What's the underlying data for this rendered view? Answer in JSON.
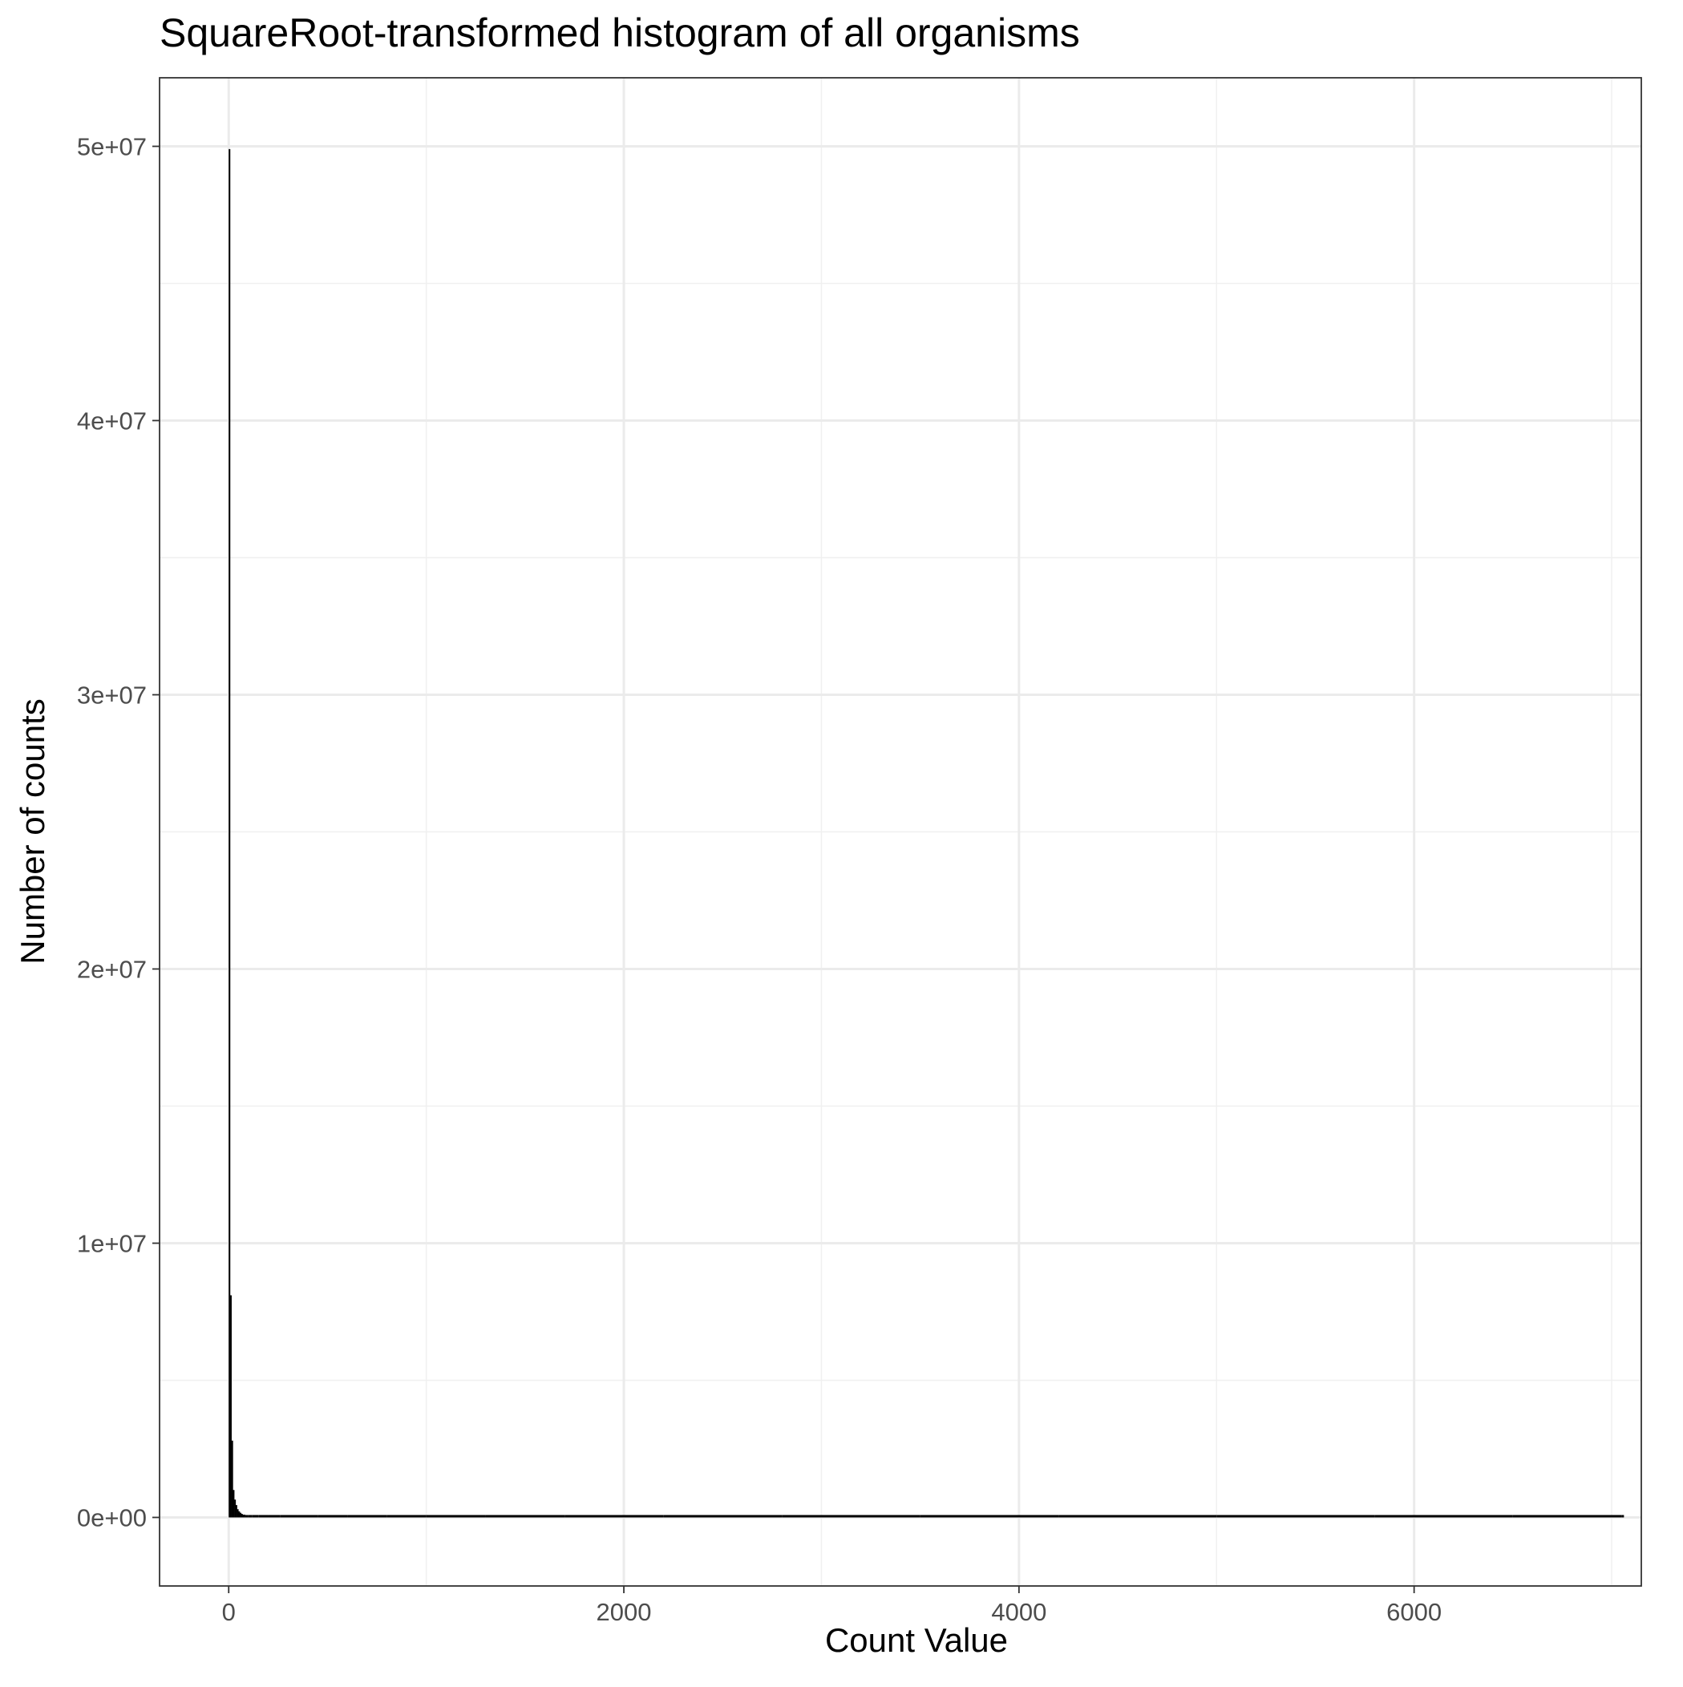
{
  "chart_data": {
    "type": "bar",
    "title": "SquareRoot-transformed histogram of all organisms",
    "xlabel": "Count Value",
    "ylabel": "Number of counts",
    "xlim": [
      -350,
      7150
    ],
    "ylim": [
      -2500000,
      52500000
    ],
    "x_ticks": [
      {
        "value": 0,
        "label": "0"
      },
      {
        "value": 2000,
        "label": "2000"
      },
      {
        "value": 4000,
        "label": "4000"
      },
      {
        "value": 6000,
        "label": "6000"
      }
    ],
    "y_ticks": [
      {
        "value": 0,
        "label": "0e+00"
      },
      {
        "value": 10000000,
        "label": "1e+07"
      },
      {
        "value": 20000000,
        "label": "2e+07"
      },
      {
        "value": 30000000,
        "label": "3e+07"
      },
      {
        "value": 40000000,
        "label": "4e+07"
      },
      {
        "value": 50000000,
        "label": "5e+07"
      }
    ],
    "grid": true,
    "bar_color": "#000000",
    "bins": [
      {
        "x": 0,
        "count": 49900000
      },
      {
        "x": 7,
        "count": 8100000
      },
      {
        "x": 14,
        "count": 2800000
      },
      {
        "x": 21,
        "count": 1000000
      },
      {
        "x": 28,
        "count": 650000
      },
      {
        "x": 35,
        "count": 450000
      },
      {
        "x": 42,
        "count": 300000
      },
      {
        "x": 49,
        "count": 220000
      },
      {
        "x": 56,
        "count": 170000
      },
      {
        "x": 63,
        "count": 130000
      },
      {
        "x": 70,
        "count": 100000
      },
      {
        "x": 84,
        "count": 80000
      },
      {
        "x": 98,
        "count": 65000
      },
      {
        "x": 120,
        "count": 50000
      },
      {
        "x": 150,
        "count": 40000
      },
      {
        "x": 200,
        "count": 30000
      },
      {
        "x": 260,
        "count": 22000
      },
      {
        "x": 350,
        "count": 16000
      },
      {
        "x": 450,
        "count": 12000
      },
      {
        "x": 600,
        "count": 9000
      },
      {
        "x": 800,
        "count": 7000
      },
      {
        "x": 1000,
        "count": 5000
      },
      {
        "x": 1300,
        "count": 3500
      },
      {
        "x": 1700,
        "count": 2500
      },
      {
        "x": 2200,
        "count": 1800
      },
      {
        "x": 2800,
        "count": 1200
      },
      {
        "x": 3500,
        "count": 900
      },
      {
        "x": 4200,
        "count": 600
      },
      {
        "x": 5000,
        "count": 400
      },
      {
        "x": 5800,
        "count": 250
      },
      {
        "x": 6500,
        "count": 150
      },
      {
        "x": 7050,
        "count": 100
      }
    ]
  }
}
